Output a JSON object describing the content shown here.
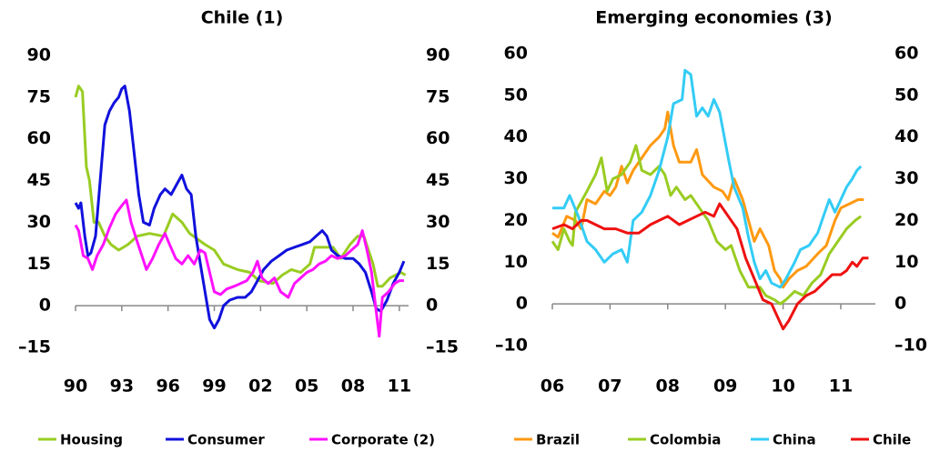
{
  "chart_data": [
    {
      "type": "line",
      "title": "Chile (1)",
      "xlim": [
        1990,
        2011.6
      ],
      "ylim": [
        -15,
        90
      ],
      "y2lim": [
        -15,
        90
      ],
      "xticks": [
        {
          "value": 1990,
          "label": "90"
        },
        {
          "value": 1993,
          "label": "93"
        },
        {
          "value": 1996,
          "label": "96"
        },
        {
          "value": 1999,
          "label": "99"
        },
        {
          "value": 2002,
          "label": "02"
        },
        {
          "value": 2005,
          "label": "05"
        },
        {
          "value": 2008,
          "label": "08"
        },
        {
          "value": 2011,
          "label": "11"
        }
      ],
      "yticks": [
        90,
        75,
        60,
        45,
        30,
        15,
        0,
        {
          "value": -15,
          "label": "–15"
        }
      ],
      "y2ticks": [
        90,
        75,
        60,
        45,
        30,
        15,
        0,
        {
          "value": -15,
          "label": "–15"
        }
      ],
      "legend": "bottom",
      "series": [
        {
          "name": "Housing",
          "color": "#99cc22",
          "x": [
            1990.0,
            1990.2,
            1990.45,
            1990.7,
            1990.9,
            1991.2,
            1991.5,
            1991.9,
            1992.3,
            1992.8,
            1993.4,
            1994.0,
            1994.8,
            1995.7,
            1996.0,
            1996.3,
            1996.9,
            1997.4,
            1998.4,
            1999.0,
            1999.6,
            2000.5,
            2001.3,
            2001.9,
            2002.8,
            2003.4,
            2004.0,
            2004.6,
            2005.2,
            2005.5,
            2006.1,
            2006.7,
            2007.2,
            2007.8,
            2008.3,
            2008.7,
            2009.3,
            2009.6,
            2009.9,
            2010.4,
            2011.1,
            2011.4
          ],
          "values": [
            75,
            79,
            77,
            50,
            45,
            30,
            30,
            25,
            22,
            20,
            22,
            25,
            26,
            25,
            29,
            33,
            30,
            26,
            22,
            20,
            15,
            13,
            12,
            9,
            8,
            11,
            13,
            12,
            15,
            21,
            21,
            21,
            17,
            22,
            25,
            25,
            15,
            7,
            7,
            10,
            12,
            11
          ]
        },
        {
          "name": "Consumer",
          "color": "#1111dd",
          "x": [
            1990.0,
            1990.2,
            1990.35,
            1990.6,
            1990.8,
            1991.0,
            1991.3,
            1991.6,
            1991.9,
            1992.2,
            1992.5,
            1992.8,
            1993.0,
            1993.2,
            1993.5,
            1993.8,
            1994.1,
            1994.4,
            1994.8,
            1995.1,
            1995.5,
            1995.8,
            1996.2,
            1996.6,
            1996.9,
            1997.2,
            1997.5,
            1997.8,
            1998.1,
            1998.4,
            1998.7,
            1999.0,
            1999.3,
            1999.6,
            2000.0,
            2000.5,
            2001.0,
            2001.4,
            2001.7,
            2002.2,
            2002.7,
            2003.2,
            2003.7,
            2004.2,
            2004.7,
            2005.2,
            2005.6,
            2006.0,
            2006.3,
            2006.6,
            2007.0,
            2007.5,
            2008.0,
            2008.4,
            2008.8,
            2009.2,
            2009.5,
            2009.8,
            2010.2,
            2010.6,
            2011.0,
            2011.3
          ],
          "values": [
            37,
            35,
            37,
            25,
            18,
            19,
            25,
            45,
            65,
            70,
            73,
            75,
            78,
            79,
            70,
            55,
            40,
            30,
            29,
            35,
            40,
            42,
            40,
            44,
            47,
            42,
            40,
            25,
            15,
            5,
            -5,
            -8,
            -5,
            0,
            2,
            3,
            3,
            5,
            8,
            13,
            16,
            18,
            20,
            21,
            22,
            23,
            25,
            27,
            25,
            20,
            18,
            17,
            17,
            15,
            12,
            5,
            -1,
            -2,
            2,
            8,
            12,
            16
          ]
        },
        {
          "name": "Corporate (2)",
          "color": "#ff11ff",
          "x": [
            1990.0,
            1990.2,
            1990.5,
            1990.8,
            1991.1,
            1991.4,
            1991.8,
            1992.2,
            1992.6,
            1993.0,
            1993.3,
            1993.6,
            1994.0,
            1994.3,
            1994.6,
            1995.0,
            1995.4,
            1995.8,
            1996.1,
            1996.5,
            1996.9,
            1997.3,
            1997.7,
            1998.1,
            1998.4,
            1998.7,
            1999.0,
            1999.4,
            1999.8,
            2000.3,
            2000.7,
            2001.1,
            2001.5,
            2001.8,
            2002.1,
            2002.5,
            2002.9,
            2003.3,
            2003.8,
            2004.2,
            2004.6,
            2005.0,
            2005.4,
            2005.8,
            2006.2,
            2006.6,
            2007.0,
            2007.5,
            2007.9,
            2008.3,
            2008.6,
            2008.9,
            2009.2,
            2009.5,
            2009.7,
            2009.9,
            2010.3,
            2010.7,
            2011.0,
            2011.3
          ],
          "values": [
            29,
            27,
            18,
            17,
            13,
            18,
            22,
            28,
            33,
            36,
            38,
            30,
            23,
            18,
            13,
            17,
            22,
            26,
            22,
            17,
            15,
            18,
            15,
            20,
            19,
            12,
            5,
            4,
            6,
            7,
            8,
            9,
            12,
            16,
            10,
            8,
            10,
            5,
            3,
            8,
            10,
            12,
            13,
            15,
            16,
            18,
            17,
            18,
            20,
            22,
            27,
            20,
            12,
            -2,
            -11,
            3,
            5,
            8,
            9,
            9
          ]
        }
      ]
    },
    {
      "type": "line",
      "title": "Emerging economies (3)",
      "xlim": [
        2006,
        2011.6
      ],
      "ylim": [
        -10,
        60
      ],
      "y2lim": [
        -10,
        60
      ],
      "xticks": [
        {
          "value": 2006,
          "label": "06"
        },
        {
          "value": 2007,
          "label": "07"
        },
        {
          "value": 2008,
          "label": "08"
        },
        {
          "value": 2009,
          "label": "09"
        },
        {
          "value": 2010,
          "label": "10"
        },
        {
          "value": 2011,
          "label": "11"
        }
      ],
      "yticks": [
        60,
        50,
        40,
        30,
        20,
        10,
        0,
        {
          "value": -10,
          "label": "–10"
        }
      ],
      "y2ticks": [
        60,
        50,
        40,
        30,
        20,
        10,
        0,
        {
          "value": -10,
          "label": "–10"
        }
      ],
      "legend": "bottom",
      "series": [
        {
          "name": "Brazil",
          "color": "#ff9911",
          "x": [
            2006.0,
            2006.1,
            2006.25,
            2006.4,
            2006.5,
            2006.6,
            2006.75,
            2006.9,
            2007.0,
            2007.1,
            2007.2,
            2007.3,
            2007.4,
            2007.55,
            2007.7,
            2007.85,
            2007.95,
            2008.0,
            2008.1,
            2008.2,
            2008.4,
            2008.5,
            2008.6,
            2008.8,
            2008.95,
            2009.05,
            2009.15,
            2009.3,
            2009.5,
            2009.6,
            2009.75,
            2009.85,
            2009.95,
            2010.0,
            2010.1,
            2010.25,
            2010.4,
            2010.6,
            2010.75,
            2010.9,
            2011.0,
            2011.15,
            2011.3,
            2011.4
          ],
          "values": [
            17,
            16,
            21,
            20,
            18,
            25,
            24,
            27,
            26,
            28,
            33,
            29,
            32,
            35,
            38,
            40,
            42,
            46,
            38,
            34,
            34,
            37,
            31,
            28,
            27,
            25,
            30,
            25,
            15,
            18,
            14,
            8,
            6,
            4,
            6,
            8,
            9,
            12,
            14,
            20,
            23,
            24,
            25,
            25
          ]
        },
        {
          "name": "Colombia",
          "color": "#99cc22",
          "x": [
            2006.0,
            2006.1,
            2006.2,
            2006.3,
            2006.35,
            2006.4,
            2006.6,
            2006.75,
            2006.85,
            2006.95,
            2007.05,
            2007.2,
            2007.35,
            2007.45,
            2007.55,
            2007.7,
            2007.85,
            2007.95,
            2008.05,
            2008.15,
            2008.3,
            2008.4,
            2008.55,
            2008.7,
            2008.85,
            2009.0,
            2009.1,
            2009.25,
            2009.4,
            2009.5,
            2009.6,
            2009.7,
            2009.85,
            2009.95,
            2010.05,
            2010.2,
            2010.35,
            2010.5,
            2010.65,
            2010.8,
            2010.95,
            2011.1,
            2011.25,
            2011.35
          ],
          "values": [
            15,
            13,
            18,
            15,
            14,
            22,
            27,
            31,
            35,
            27,
            30,
            31,
            34,
            38,
            32,
            31,
            33,
            31,
            26,
            28,
            25,
            26,
            23,
            20,
            15,
            13,
            14,
            8,
            4,
            4,
            4,
            2,
            1,
            0,
            1,
            3,
            2,
            5,
            7,
            12,
            15,
            18,
            20,
            21
          ]
        },
        {
          "name": "China",
          "color": "#33ccf5",
          "x": [
            2006.0,
            2006.2,
            2006.3,
            2006.45,
            2006.6,
            2006.75,
            2006.9,
            2007.05,
            2007.2,
            2007.3,
            2007.4,
            2007.55,
            2007.7,
            2007.85,
            2008.0,
            2008.1,
            2008.25,
            2008.3,
            2008.4,
            2008.5,
            2008.6,
            2008.7,
            2008.8,
            2008.9,
            2009.05,
            2009.15,
            2009.3,
            2009.4,
            2009.5,
            2009.6,
            2009.7,
            2009.8,
            2009.95,
            2010.05,
            2010.2,
            2010.3,
            2010.45,
            2010.6,
            2010.7,
            2010.8,
            2010.9,
            2011.0,
            2011.1,
            2011.2,
            2011.28,
            2011.35
          ],
          "values": [
            23,
            23,
            26,
            21,
            15,
            13,
            10,
            12,
            13,
            10,
            20,
            22,
            26,
            32,
            40,
            48,
            49,
            56,
            55,
            45,
            47,
            45,
            49,
            46,
            35,
            28,
            23,
            16,
            10,
            6,
            8,
            5,
            4,
            6,
            10,
            13,
            14,
            17,
            21,
            25,
            22,
            25,
            28,
            30,
            32,
            33
          ]
        },
        {
          "name": "Chile",
          "color": "#ee1111",
          "x": [
            2006.0,
            2006.2,
            2006.35,
            2006.5,
            2006.6,
            2006.75,
            2006.9,
            2007.1,
            2007.3,
            2007.5,
            2007.7,
            2007.85,
            2008.0,
            2008.2,
            2008.35,
            2008.5,
            2008.65,
            2008.8,
            2008.9,
            2009.05,
            2009.2,
            2009.35,
            2009.5,
            2009.65,
            2009.8,
            2009.9,
            2010.0,
            2010.1,
            2010.25,
            2010.4,
            2010.55,
            2010.7,
            2010.85,
            2011.0,
            2011.1,
            2011.2,
            2011.28,
            2011.38,
            2011.48
          ],
          "values": [
            18,
            19,
            18,
            20,
            20,
            19,
            18,
            18,
            17,
            17,
            19,
            20,
            21,
            19,
            20,
            21,
            22,
            21,
            24,
            21,
            18,
            11,
            6,
            1,
            0,
            -3,
            -6,
            -4,
            0,
            2,
            3,
            5,
            7,
            7,
            8,
            10,
            9,
            11,
            11
          ]
        }
      ]
    }
  ]
}
